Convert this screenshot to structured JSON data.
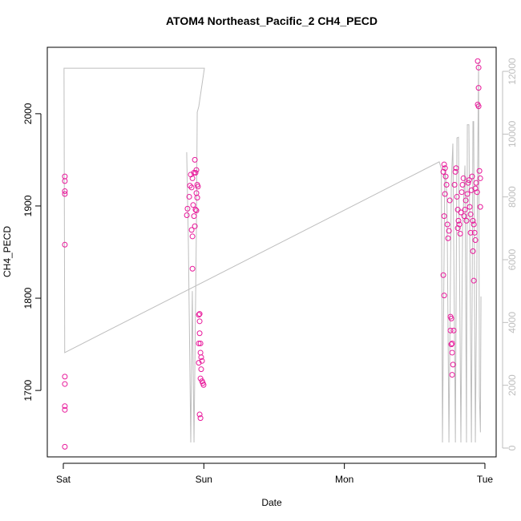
{
  "chart_data": {
    "type": "scatter",
    "title": "ATOM4 Northeast_Pacific_2 CH4_PECD",
    "xlabel": "Date",
    "ylabel": "CH4_PECD",
    "xlim": [
      -0.114,
      3.08
    ],
    "xticks": [
      {
        "value": 0,
        "label": "Sat"
      },
      {
        "value": 1,
        "label": "Sun"
      },
      {
        "value": 2,
        "label": "Mon"
      },
      {
        "value": 3,
        "label": "Tue"
      }
    ],
    "ylim": [
      1628,
      2072
    ],
    "yticks": [
      1700,
      1800,
      1900,
      2000
    ],
    "y2lim": [
      -281,
      12766
    ],
    "y2ticks": [
      0,
      2000,
      4000,
      6000,
      8000,
      10000,
      12000
    ],
    "series": [
      {
        "type": "line",
        "axis": "y2",
        "color": "#bebebe",
        "x": [
          2.972,
          2.968,
          2.961,
          2.955,
          2.943,
          2.932,
          2.92,
          2.915,
          2.904,
          2.886,
          2.875,
          2.869,
          2.858,
          2.841,
          2.829,
          2.812,
          2.801,
          2.79,
          2.772,
          2.761,
          2.744,
          2.73,
          2.715,
          2.698,
          2.69,
          2.675,
          0.01,
          0.005,
          1.004,
          0.964,
          0.953,
          0.947,
          0.93,
          0.918,
          0.907,
          0.89,
          0.878
        ],
        "values": [
          4830,
          500,
          1640,
          12310,
          6000,
          180,
          10400,
          10400,
          180,
          10300,
          10300,
          180,
          9000,
          7000,
          180,
          9900,
          9880,
          180,
          9700,
          8500,
          180,
          8000,
          9000,
          180,
          8900,
          9118,
          3040,
          12100,
          12100,
          10880,
          10700,
          7000,
          180,
          5000,
          180,
          6500,
          9425
        ]
      },
      {
        "type": "scatter",
        "color": "#e8189a",
        "x": [
          0.011,
          0.011,
          0.011,
          0.011,
          0.011,
          0.011,
          0.011,
          0.011,
          0.011,
          0.011,
          0.879,
          0.884,
          0.896,
          0.901,
          0.907,
          0.913,
          0.919,
          0.924,
          0.93,
          0.936,
          0.919,
          0.913,
          0.919,
          0.93,
          0.941,
          0.947,
          0.953,
          0.941,
          0.947,
          0.936,
          0.953,
          0.947,
          0.958,
          0.964,
          0.97,
          0.964,
          0.97,
          0.976,
          0.964,
          0.976,
          0.981,
          0.987,
          0.981,
          0.976,
          0.987,
          0.993,
          0.998,
          0.97,
          0.976,
          0.97,
          2.704,
          2.71,
          2.716,
          2.721,
          2.727,
          2.716,
          2.71,
          2.704,
          2.71,
          2.733,
          2.738,
          2.744,
          2.75,
          2.755,
          2.761,
          2.755,
          2.767,
          2.761,
          2.767,
          2.773,
          2.767,
          2.778,
          2.784,
          2.79,
          2.795,
          2.801,
          2.807,
          2.812,
          2.818,
          2.824,
          2.829,
          2.835,
          2.841,
          2.847,
          2.852,
          2.858,
          2.864,
          2.869,
          2.875,
          2.881,
          2.887,
          2.892,
          2.898,
          2.904,
          2.909,
          2.915,
          2.921,
          2.927,
          2.932,
          2.938,
          2.944,
          2.915,
          2.921,
          2.949,
          2.955,
          2.955,
          2.949,
          2.955,
          2.961,
          2.967,
          2.967,
          2.932,
          2.898,
          2.807
        ],
        "values": [
          1932,
          1927,
          1916,
          1913,
          1858,
          1715,
          1707,
          1683,
          1679,
          1639,
          1890,
          1897,
          1910,
          1922,
          1934,
          1920,
          1930,
          1901,
          1889,
          1878,
          1867,
          1874,
          1832,
          1936,
          1936,
          1914,
          1909,
          1896,
          1939,
          1950,
          1923,
          1895,
          1921,
          1782,
          1775,
          1751,
          1762,
          1751,
          1730,
          1741,
          1736,
          1732,
          1723,
          1713,
          1710,
          1708,
          1706,
          1674,
          1670,
          1783,
          1937,
          1945,
          1941,
          1932,
          1923,
          1913,
          1889,
          1825,
          1803,
          1880,
          1865,
          1873,
          1906,
          1780,
          1778,
          1765,
          1751,
          1750,
          1741,
          1728,
          1717,
          1765,
          1923,
          1937,
          1941,
          1910,
          1896,
          1884,
          1880,
          1870,
          1893,
          1915,
          1923,
          1930,
          1889,
          1896,
          1906,
          1884,
          1913,
          1925,
          1928,
          1899,
          1891,
          1917,
          1932,
          1884,
          1880,
          1871,
          1919,
          1925,
          1915,
          1851,
          1819,
          2057,
          2050,
          2028,
          2010,
          2008,
          1938,
          1930,
          1899,
          1863,
          1871,
          1876
        ]
      }
    ]
  }
}
